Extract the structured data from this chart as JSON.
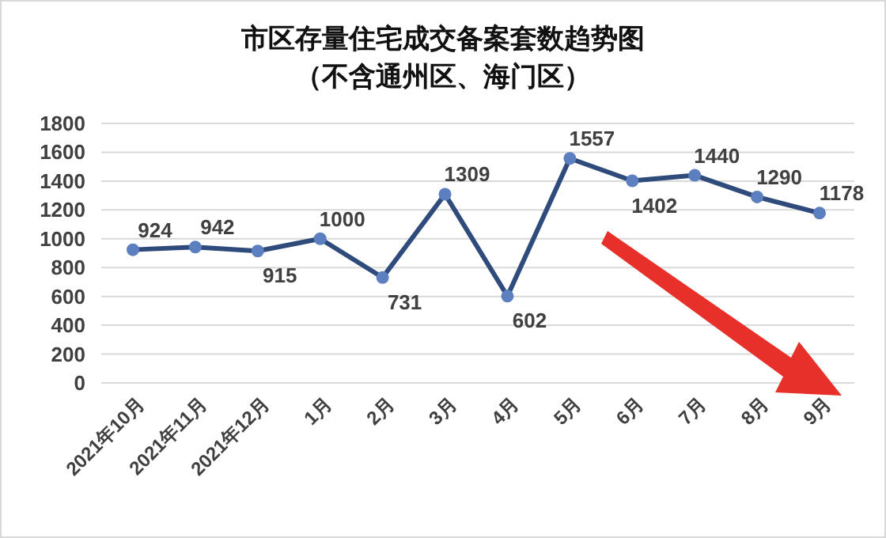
{
  "chart_data": {
    "type": "line",
    "title": "市区存量住宅成交备案套数趋势图",
    "subtitle": "（不含通州区、海门区）",
    "categories": [
      "2021年10月",
      "2021年11月",
      "2021年12月",
      "1月",
      "2月",
      "3月",
      "4月",
      "5月",
      "6月",
      "7月",
      "8月",
      "9月"
    ],
    "series": [
      {
        "color": "#2f4b7c",
        "values": [
          924,
          942,
          915,
          1000,
          731,
          1309,
          602,
          1557,
          1402,
          1440,
          1290,
          1178
        ]
      }
    ],
    "ylim": [
      0,
      1800
    ],
    "yticks": [
      0,
      200,
      400,
      600,
      800,
      1000,
      1200,
      1400,
      1600,
      1800
    ],
    "grid": "y",
    "marker": "circle",
    "line_style": "solid",
    "data_labels": true
  }
}
